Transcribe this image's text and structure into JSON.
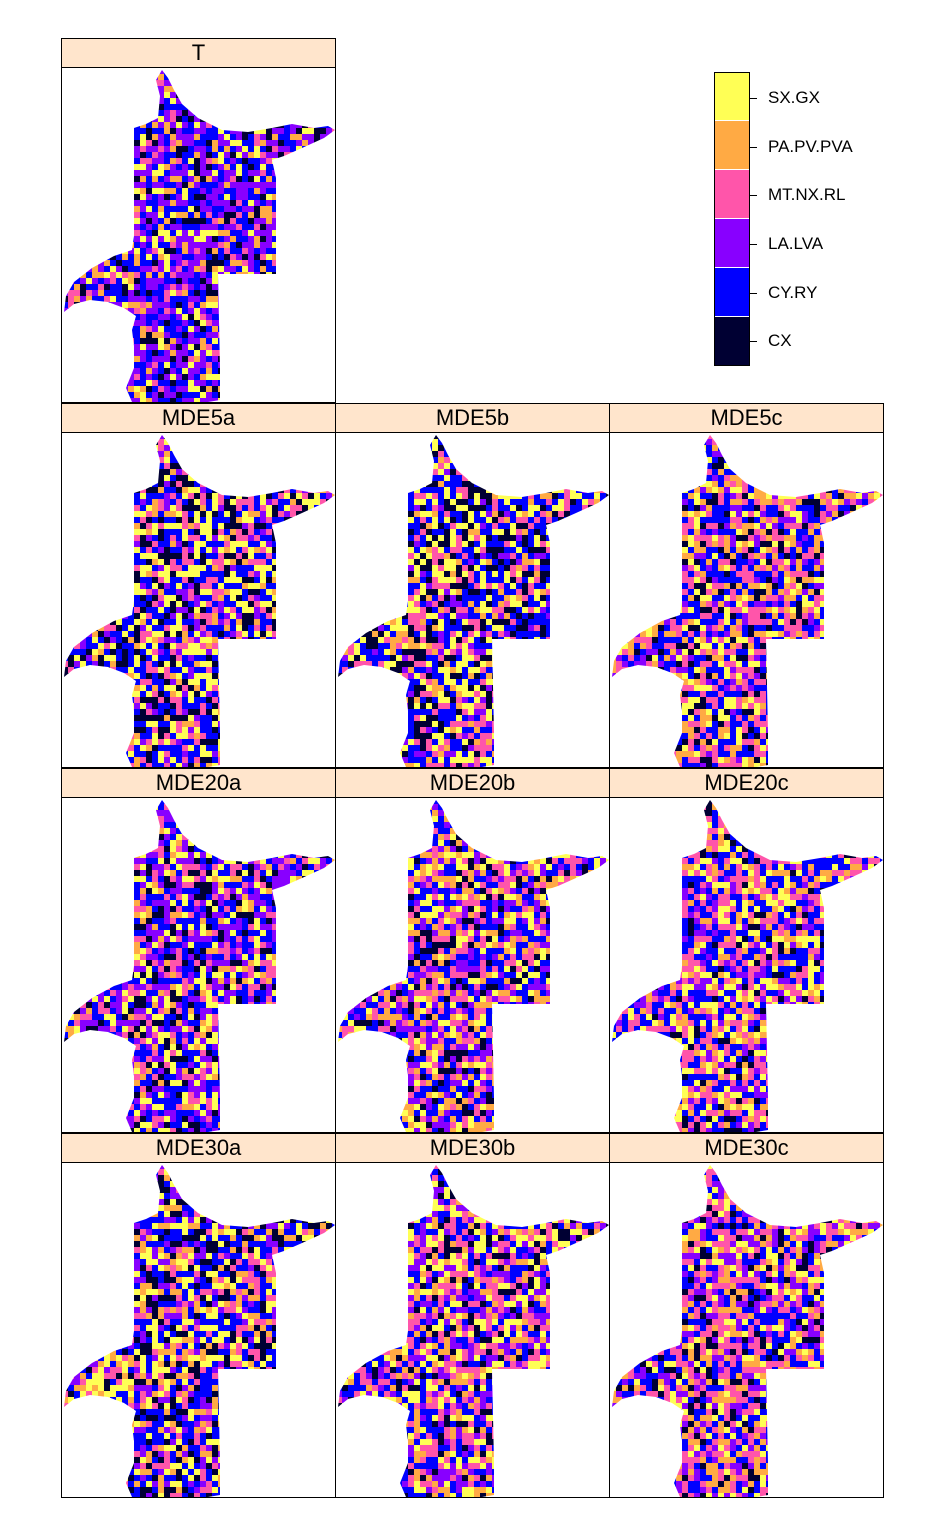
{
  "palette": [
    "#000033",
    "#0000ff",
    "#8800ff",
    "#ff55aa",
    "#ffaa44",
    "#ffff55"
  ],
  "legend": {
    "classes": [
      "SX.GX",
      "PA.PV.PVA",
      "MT.NX.RL",
      "LA.LVA",
      "CY.RY",
      "CX"
    ]
  },
  "panels": [
    {
      "title": "T",
      "weights": [
        0.1,
        0.12,
        0.08,
        0.3,
        0.28,
        0.12
      ]
    },
    {
      "title": "MDE5a",
      "weights": [
        0.22,
        0.06,
        0.16,
        0.08,
        0.28,
        0.2
      ]
    },
    {
      "title": "MDE5b",
      "weights": [
        0.2,
        0.08,
        0.16,
        0.08,
        0.28,
        0.2
      ]
    },
    {
      "title": "MDE5c",
      "weights": [
        0.14,
        0.16,
        0.22,
        0.1,
        0.24,
        0.14
      ]
    },
    {
      "title": "MDE20a",
      "weights": [
        0.18,
        0.08,
        0.14,
        0.22,
        0.24,
        0.14
      ]
    },
    {
      "title": "MDE20b",
      "weights": [
        0.16,
        0.16,
        0.18,
        0.16,
        0.22,
        0.12
      ]
    },
    {
      "title": "MDE20c",
      "weights": [
        0.2,
        0.12,
        0.22,
        0.1,
        0.28,
        0.08
      ]
    },
    {
      "title": "MDE30a",
      "weights": [
        0.18,
        0.12,
        0.16,
        0.12,
        0.24,
        0.18
      ]
    },
    {
      "title": "MDE30b",
      "weights": [
        0.18,
        0.12,
        0.22,
        0.16,
        0.2,
        0.12
      ]
    },
    {
      "title": "MDE30c",
      "weights": [
        0.14,
        0.14,
        0.24,
        0.16,
        0.2,
        0.12
      ]
    }
  ]
}
